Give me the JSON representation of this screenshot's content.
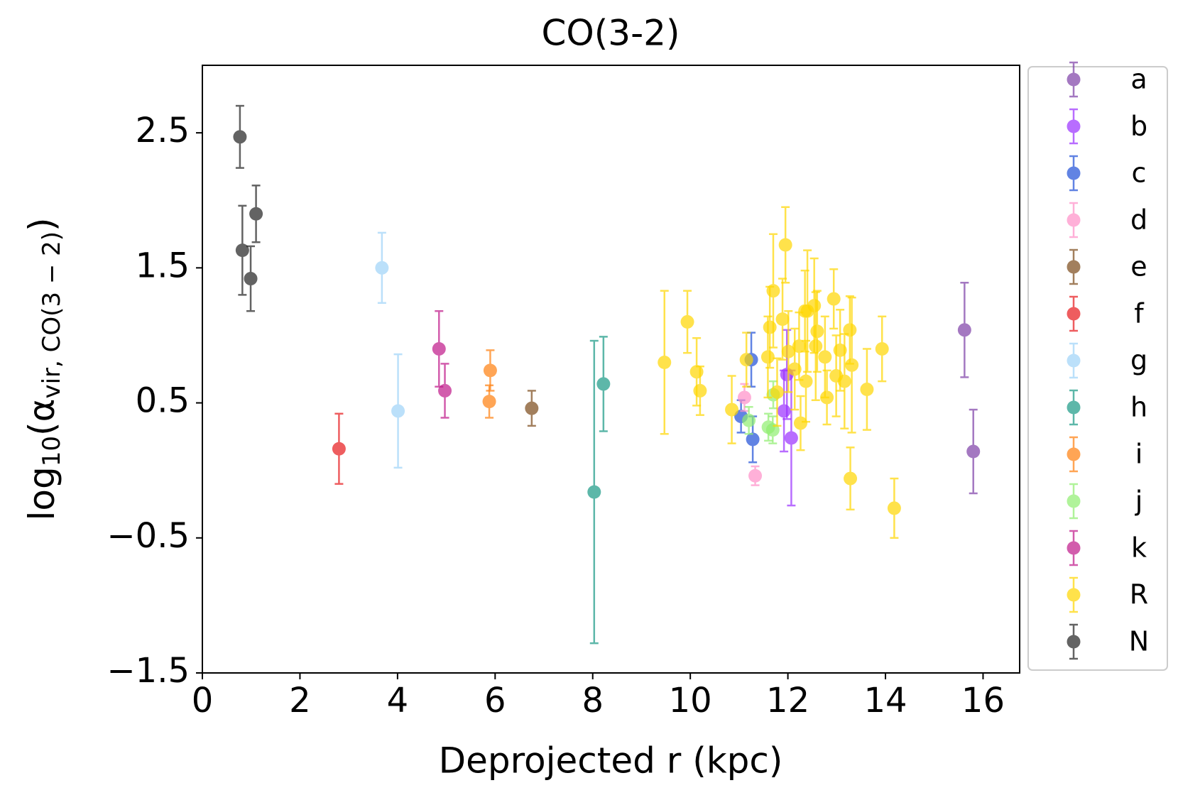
{
  "chart_data": {
    "type": "scatter",
    "title": "CO(3-2)",
    "xlabel": "Deprojected r (kpc)",
    "ylabel": [
      "log",
      "10",
      "(α",
      "vir, CO(3 − 2)",
      ")"
    ],
    "xlim": [
      0,
      16.75
    ],
    "ylim": [
      -1.5,
      3
    ],
    "xticks": [
      0,
      2,
      4,
      6,
      8,
      10,
      12,
      14,
      16
    ],
    "yticks": [
      {
        "value": -1.5,
        "label": "−1.5"
      },
      {
        "value": -0.5,
        "label": "−0.5"
      },
      0.5,
      1.5,
      2.5
    ],
    "legend": "outside upper right",
    "series": [
      {
        "name": "a",
        "color": "#7e3fa8",
        "x": [
          15.62,
          15.8
        ],
        "values": [
          1.04,
          0.14
        ],
        "errors": [
          0.35,
          0.31
        ]
      },
      {
        "name": "b",
        "color": "#9b30ff",
        "x": [
          11.98,
          11.92,
          12.07
        ],
        "values": [
          0.71,
          0.44,
          0.24
        ],
        "errors": [
          0.33,
          0.3,
          0.5
        ]
      },
      {
        "name": "c",
        "color": "#1f4fd8",
        "x": [
          11.25,
          11.04,
          11.28
        ],
        "values": [
          0.82,
          0.4,
          0.23
        ],
        "errors": [
          0.2,
          0.12,
          0.17
        ]
      },
      {
        "name": "d",
        "color": "#ff8fc8",
        "x": [
          11.11,
          11.33
        ],
        "values": [
          0.54,
          -0.04
        ],
        "errors": [
          0.1,
          0.07
        ]
      },
      {
        "name": "e",
        "color": "#7b4a1a",
        "x": [
          6.75
        ],
        "values": [
          0.46
        ],
        "errors": [
          0.13
        ]
      },
      {
        "name": "f",
        "color": "#e8191c",
        "x": [
          2.8
        ],
        "values": [
          0.16
        ],
        "errors": [
          0.26
        ]
      },
      {
        "name": "g",
        "color": "#9fd3f8",
        "x": [
          3.68,
          4.01
        ],
        "values": [
          1.5,
          0.44
        ],
        "errors": [
          0.26,
          0.42
        ]
      },
      {
        "name": "h",
        "color": "#1a9a86",
        "x": [
          8.03,
          8.22
        ],
        "values": [
          -0.16,
          0.64
        ],
        "errors": [
          1.12,
          0.35
        ]
      },
      {
        "name": "i",
        "color": "#ff7f0e",
        "x": [
          5.9,
          5.88
        ],
        "values": [
          0.74,
          0.51
        ],
        "errors": [
          0.15,
          0.12
        ]
      },
      {
        "name": "j",
        "color": "#90ee70",
        "x": [
          11.2,
          11.6,
          11.69,
          11.7
        ],
        "values": [
          0.37,
          0.32,
          0.3,
          0.56
        ],
        "errors": [
          0.1,
          0.1,
          0.1,
          0.1
        ]
      },
      {
        "name": "k",
        "color": "#c01889",
        "x": [
          4.85,
          4.97
        ],
        "values": [
          0.9,
          0.59
        ],
        "errors": [
          0.28,
          0.2
        ]
      },
      {
        "name": "R",
        "color": "#ffd700",
        "x": [
          9.47,
          9.94,
          10.13,
          10.2,
          10.85,
          11.15,
          11.59,
          11.63,
          11.7,
          11.89,
          11.95,
          12.01,
          11.78,
          12.14,
          12.23,
          12.26,
          12.35,
          12.4,
          12.37,
          12.54,
          12.57,
          12.6,
          12.76,
          12.8,
          12.94,
          12.99,
          13.07,
          13.16,
          13.27,
          13.31,
          13.28,
          13.62,
          13.93,
          14.18
        ],
        "values": [
          0.8,
          1.1,
          0.73,
          0.59,
          0.45,
          0.82,
          0.84,
          1.06,
          1.33,
          1.12,
          1.67,
          0.88,
          0.58,
          0.75,
          0.92,
          0.35,
          1.18,
          1.18,
          0.66,
          1.22,
          0.92,
          1.03,
          0.84,
          0.54,
          1.27,
          0.7,
          0.89,
          0.66,
          1.04,
          0.78,
          -0.06,
          0.6,
          0.9,
          -0.28
        ],
        "errors": [
          0.53,
          0.23,
          0.25,
          0.18,
          0.25,
          0.2,
          0.3,
          0.3,
          0.42,
          0.3,
          0.28,
          0.3,
          0.25,
          0.3,
          0.25,
          0.2,
          0.3,
          0.45,
          0.3,
          0.35,
          0.4,
          0.3,
          0.3,
          0.2,
          0.22,
          0.3,
          0.3,
          0.35,
          0.25,
          0.5,
          0.23,
          0.3,
          0.24,
          0.22
        ]
      },
      {
        "name": "N",
        "color": "#222222",
        "x": [
          0.77,
          0.82,
          0.99,
          1.1
        ],
        "values": [
          2.47,
          1.63,
          1.42,
          1.9
        ],
        "errors": [
          0.23,
          0.33,
          0.24,
          0.21
        ]
      }
    ]
  }
}
